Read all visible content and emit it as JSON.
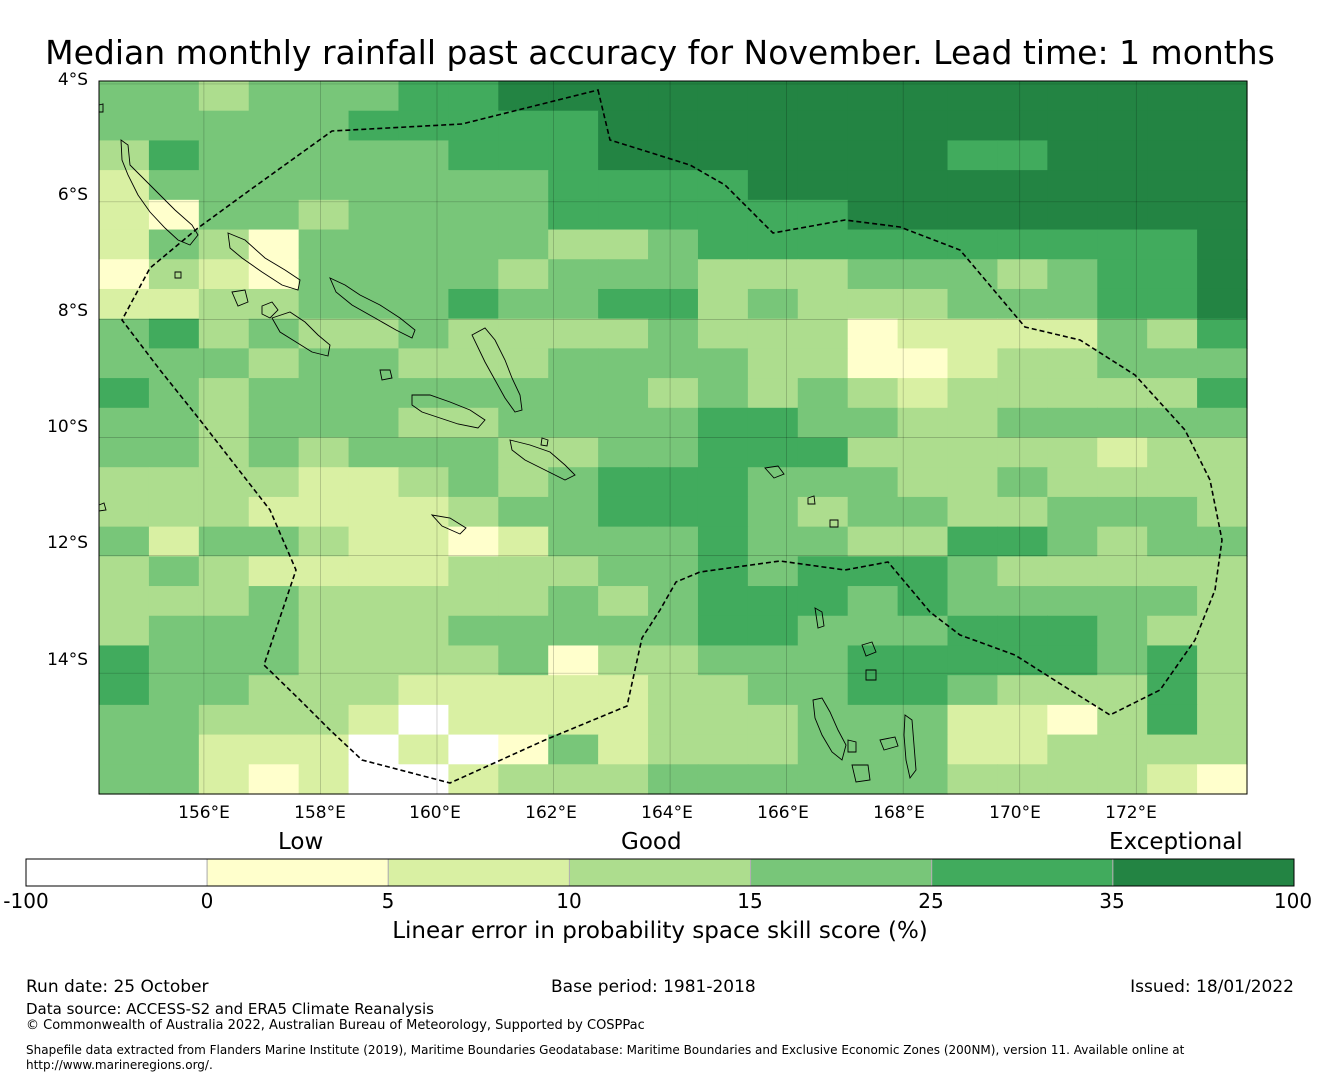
{
  "title": "Median monthly rainfall past accuracy for November. Lead time: 1 months",
  "lat_labels": [
    "4°S",
    "6°S",
    "8°S",
    "10°S",
    "12°S",
    "14°S"
  ],
  "lon_labels": [
    "156°E",
    "158°E",
    "160°E",
    "162°E",
    "164°E",
    "166°E",
    "168°E",
    "170°E",
    "172°E"
  ],
  "map_grid": {
    "lon_range": [
      154.2,
      173.9
    ],
    "lat_range": [
      -16.05,
      -3.95
    ],
    "cell_deg": 0.833,
    "palette": [
      "#ffffff",
      "#ffffcc",
      "#d9f0a3",
      "#addd8e",
      "#78c679",
      "#41ab5d",
      "#238443"
    ],
    "rows": [
      "44344455666666666666666",
      "44444555556666666666666",
      "35444445556666666556666",
      "24444444455556666666666",
      "21443444455555566666666",
      "24314444433455555555556",
      "13214444344433344434556",
      "22334445445534333444556",
      "45343343333433312222435",
      "44434433344443311233444",
      "54344444444343432333335",
      "44344433444455443344444",
      "44343444334455533333233",
      "33332234345554443343333",
      "33322223445554344334443",
      "42443221244454433554344",
      "34322223334454555433333",
      "33343333343455545444443",
      "34443334444455444555433",
      "54443333413344455555453",
      "54433322222334455433353",
      "44333202222333444221353",
      "44222020142333444223333",
      "44212002333444444333321"
    ],
    "blank_area": "ocean outside EEZ, south-west corner"
  },
  "colorbar": {
    "band_labels": [
      "Low",
      "Good",
      "Exceptional"
    ],
    "tick_labels": [
      "-100",
      "0",
      "5",
      "10",
      "15",
      "25",
      "35",
      "100"
    ],
    "colors": [
      "#ffffff",
      "#ffffcc",
      "#d9f0a3",
      "#addd8e",
      "#78c679",
      "#41ab5d",
      "#238443"
    ],
    "label": "Linear error in probability space skill score (%)"
  },
  "footer": {
    "run_date": "Run date: 25 October",
    "base_period": "Base period: 1981-2018",
    "issued": "Issued: 18/01/2022",
    "data_source": "Data source: ACCESS-S2 and ERA5 Climate Reanalysis",
    "copyright": "© Commonwealth of Australia 2022, Australian Bureau of Meteorology, Supported by COSPPac",
    "shapefile_1": "Shapefile data extracted from Flanders Marine Institute (2019), Maritime Boundaries Geodatabase: Maritime Boundaries and Exclusive Economic Zones (200NM), version 11. Available online at",
    "shapefile_2": "http://www.marineregions.org/."
  }
}
